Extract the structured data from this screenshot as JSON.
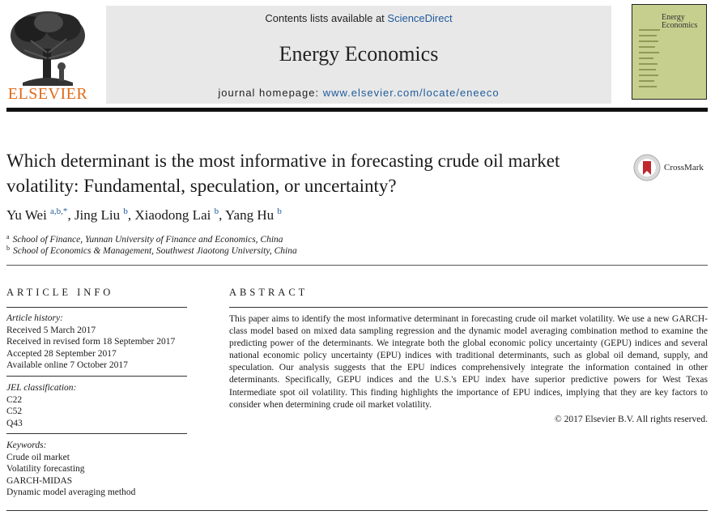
{
  "publisher": {
    "name": "ELSEVIER"
  },
  "banner": {
    "contents_prefix": "Contents lists available at ",
    "contents_link": "ScienceDirect",
    "journal": "Energy Economics",
    "homepage_prefix": "journal homepage: ",
    "homepage_link": "www.elsevier.com/locate/eneeco"
  },
  "cover": {
    "title_line1": "Energy",
    "title_line2": "Economics"
  },
  "crossmark": {
    "label": "CrossMark"
  },
  "article": {
    "title": "Which determinant is the most informative in forecasting crude oil market volatility: Fundamental, speculation, or uncertainty?",
    "authors": [
      {
        "name": "Yu Wei",
        "sup": "a,b,*",
        "sep": ", "
      },
      {
        "name": "Jing Liu",
        "sup": "b",
        "sep": ", "
      },
      {
        "name": "Xiaodong Lai",
        "sup": "b",
        "sep": ", "
      },
      {
        "name": "Yang Hu",
        "sup": "b",
        "sep": ""
      }
    ],
    "affiliations": [
      {
        "mark": "a",
        "text": "School of Finance, Yunnan University of Finance and Economics, China"
      },
      {
        "mark": "b",
        "text": "School of Economics & Management, Southwest Jiaotong University, China"
      }
    ]
  },
  "article_info": {
    "heading": "ARTICLE INFO",
    "history_label": "Article history:",
    "history": [
      "Received 5 March 2017",
      "Received in revised form 18 September 2017",
      "Accepted 28 September 2017",
      "Available online 7 October 2017"
    ],
    "jel_label": "JEL classification:",
    "jel": [
      "C22",
      "C52",
      "Q43"
    ],
    "keywords_label": "Keywords:",
    "keywords": [
      "Crude oil market",
      "Volatility forecasting",
      "GARCH-MIDAS",
      "Dynamic model averaging method"
    ]
  },
  "abstract": {
    "heading": "ABSTRACT",
    "text": "This paper aims to identify the most informative determinant in forecasting crude oil market volatility. We use a new GARCH-class model based on mixed data sampling regression and the dynamic model averaging combination method to examine the predicting power of the determinants. We integrate both the global economic policy uncertainty (GEPU) indices and several national economic policy uncertainty (EPU) indices with traditional determinants, such as global oil demand, supply, and speculation. Our analysis suggests that the EPU indices comprehensively integrate the information contained in other determinants. Specifically, GEPU indices and the U.S.'s EPU index have superior predictive powers for West Texas Intermediate spot oil volatility. This finding highlights the importance of EPU indices, implying that they are key factors to consider when determining crude oil market volatility.",
    "copyright": "© 2017 Elsevier B.V. All rights reserved."
  },
  "colors": {
    "link": "#1f5b9b",
    "elsevier_orange": "#e26a1a",
    "banner_bg": "#e8e8e8"
  }
}
